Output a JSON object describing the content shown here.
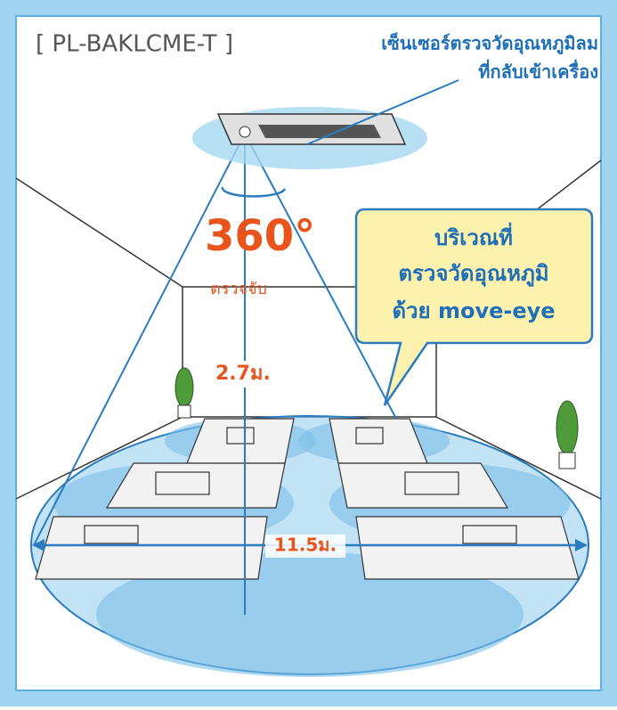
{
  "header": {
    "model": "[ PL-BAKLCME-T ]",
    "sensor_label": [
      "เซ็นเซอร์ตรวจวัดอุณหภูมิลม",
      "ที่กลับเข้าเครื่อง"
    ]
  },
  "detection": {
    "angle": "360°",
    "caption": "ตรวจจับ"
  },
  "callout": {
    "lines": [
      "บริเวณที่",
      "ตรวจวัดอุณหภูมิ",
      "ด้วย move-eye"
    ]
  },
  "dimensions": {
    "height": "2.7ม.",
    "width": "11.5ม."
  }
}
